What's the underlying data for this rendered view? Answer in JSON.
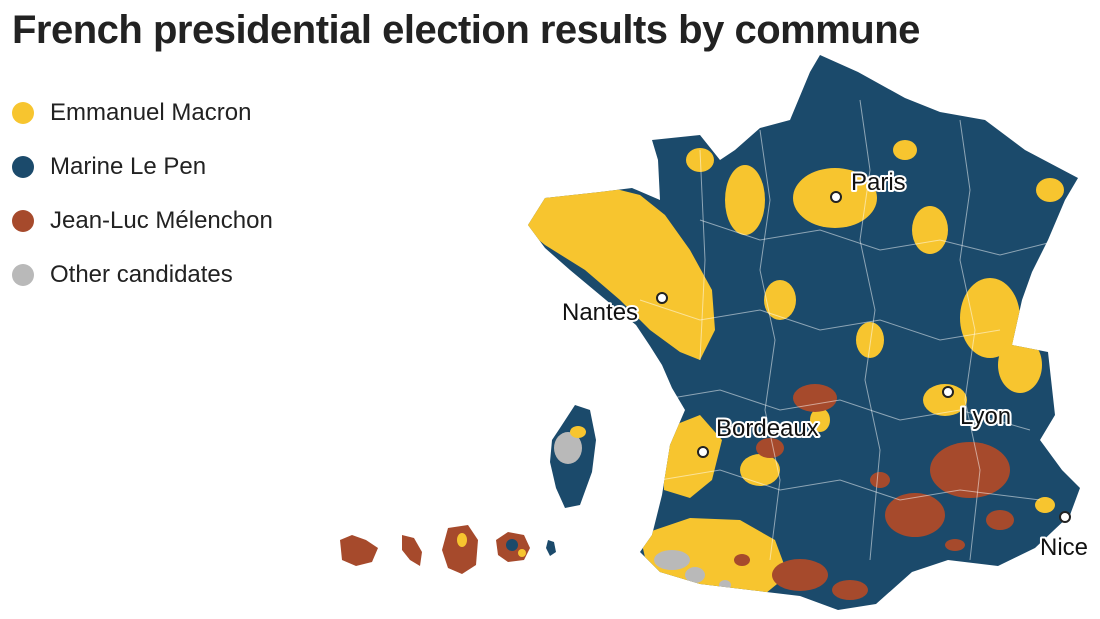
{
  "title": "French presidential election results by commune",
  "legend": [
    {
      "label": "Emmanuel Macron",
      "color": "#f7c52f"
    },
    {
      "label": "Marine Le Pen",
      "color": "#1b4a6b"
    },
    {
      "label": "Jean-Luc Mélenchon",
      "color": "#a64a2c"
    },
    {
      "label": "Other candidates",
      "color": "#b9b9b9"
    }
  ],
  "cities": {
    "paris": "Paris",
    "nantes": "Nantes",
    "bordeaux": "Bordeaux",
    "lyon": "Lyon",
    "nice": "Nice"
  },
  "colors": {
    "macron": "#f7c52f",
    "le_pen": "#1b4a6b",
    "melenchon": "#a64a2c",
    "other": "#b9b9b9",
    "border": "#ffffff"
  }
}
